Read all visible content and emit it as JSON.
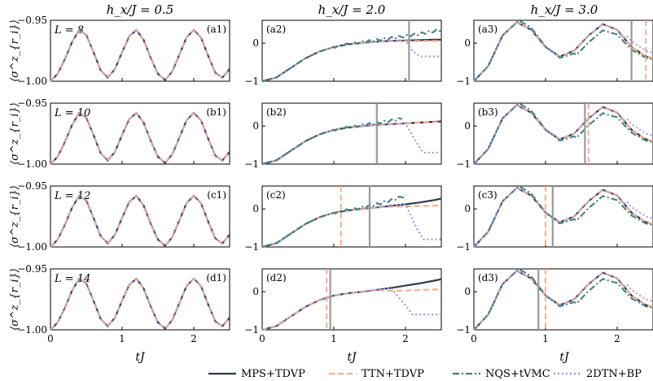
{
  "colors": {
    "mps": "#2f3a48",
    "ttn": "#f4b08f",
    "nqs": "#3e7f7a",
    "bp": "#9a90e6",
    "vline_gray": "#9a9a9a",
    "vline_peach": "#f4b08f"
  },
  "chart_data": {
    "type": "line",
    "col_titles": [
      "h_x/J = 0.5",
      "h_x/J = 2.0",
      "h_x/J = 3.0"
    ],
    "row_labels": [
      "L = 8",
      "L = 10",
      "L = 12",
      "L = 14"
    ],
    "xlabel": "tJ",
    "ylabel": "⟨σ^z_{r_i}⟩",
    "xlim": [
      0,
      2.5
    ],
    "xticks": [
      "0",
      "1",
      "2"
    ],
    "col1_yticks": [
      "−0.95",
      "−1.00"
    ],
    "col1_ylim": [
      -1.0,
      -0.95
    ],
    "col23_yticks": [
      "0",
      "−1"
    ],
    "col23_ylim": [
      -1,
      0.6
    ],
    "legend": [
      "MPS+TDVP",
      "TTN+TDVP",
      "NQS+tVMC",
      "2DTN+BP"
    ],
    "panel_tags": [
      [
        "(a1)",
        "(a2)",
        "(a3)"
      ],
      [
        "(b1)",
        "(b2)",
        "(b3)"
      ],
      [
        "(c1)",
        "(c2)",
        "(c3)"
      ],
      [
        "(d1)",
        "(d2)",
        "(d3)"
      ]
    ],
    "col1_oscillation": {
      "x": [
        0,
        0.1,
        0.2,
        0.3,
        0.4,
        0.5,
        0.6,
        0.7,
        0.8,
        0.9,
        1.0,
        1.1,
        1.2,
        1.3,
        1.4,
        1.5,
        1.6,
        1.7,
        1.8,
        1.9,
        2.0,
        2.1,
        2.2,
        2.3,
        2.4,
        2.5
      ],
      "y": [
        -1.0,
        -0.994,
        -0.982,
        -0.968,
        -0.958,
        -0.962,
        -0.976,
        -0.991,
        -0.997,
        -0.99,
        -0.976,
        -0.963,
        -0.958,
        -0.966,
        -0.981,
        -0.994,
        -0.999,
        -0.992,
        -0.978,
        -0.964,
        -0.958,
        -0.964,
        -0.979,
        -0.993,
        -0.997,
        -0.99
      ]
    },
    "col2": {
      "mps": {
        "x": [
          0,
          0.2,
          0.4,
          0.6,
          0.8,
          1.0,
          1.2,
          1.4,
          1.6,
          1.8,
          2.0,
          2.2,
          2.4,
          2.5
        ],
        "rows": [
          [
            -1.0,
            -0.9,
            -0.65,
            -0.4,
            -0.22,
            -0.1,
            -0.03,
            0.01,
            0.04,
            0.06,
            0.07,
            0.08,
            0.09,
            0.09
          ],
          [
            -1.0,
            -0.9,
            -0.65,
            -0.4,
            -0.22,
            -0.1,
            -0.04,
            0.0,
            0.03,
            0.05,
            0.07,
            0.09,
            0.11,
            0.12
          ],
          [
            -1.0,
            -0.9,
            -0.65,
            -0.4,
            -0.22,
            -0.1,
            -0.04,
            0.0,
            0.04,
            0.08,
            0.12,
            0.17,
            0.23,
            0.27
          ],
          [
            -1.0,
            -0.9,
            -0.65,
            -0.4,
            -0.22,
            -0.1,
            -0.04,
            0.0,
            0.05,
            0.1,
            0.16,
            0.22,
            0.29,
            0.33
          ]
        ]
      },
      "ttn_end": [
        0.05,
        0.1,
        0.05,
        0.0
      ],
      "nqs_end": [
        0.35,
        0.25,
        0.5,
        null
      ],
      "nqs_xend": [
        2.5,
        1.95,
        2.0,
        null
      ],
      "bp_drop": [
        {
          "x": 2.1,
          "y": -0.35
        },
        {
          "x": 2.15,
          "y": -0.7
        },
        {
          "x": 2.15,
          "y": -0.8
        },
        {
          "x": 2.0,
          "y": -0.6
        }
      ],
      "vlines_gray": [
        2.05,
        1.6,
        1.5,
        0.95
      ],
      "vlines_peach": [
        null,
        null,
        1.1,
        0.9
      ]
    },
    "col3": {
      "x": [
        0,
        0.2,
        0.4,
        0.6,
        0.8,
        1.0,
        1.2,
        1.4,
        1.6,
        1.8,
        2.0,
        2.2,
        2.4,
        2.5
      ],
      "mps": [
        -1.0,
        -0.6,
        0.2,
        0.55,
        0.35,
        -0.1,
        -0.35,
        -0.2,
        0.2,
        0.5,
        0.35,
        -0.1,
        -0.35,
        -0.4
      ],
      "vlines_gray": [
        2.2,
        1.55,
        1.1,
        0.9
      ],
      "vlines_peach": [
        2.4,
        1.6,
        1.0,
        1.0
      ]
    }
  }
}
